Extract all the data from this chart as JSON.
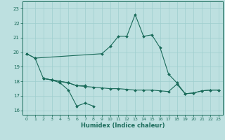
{
  "xlabel": "Humidex (Indice chaleur)",
  "xlim": [
    -0.5,
    23.5
  ],
  "ylim": [
    15.7,
    23.5
  ],
  "yticks": [
    16,
    17,
    18,
    19,
    20,
    21,
    22,
    23
  ],
  "xticks": [
    0,
    1,
    2,
    3,
    4,
    5,
    6,
    7,
    8,
    9,
    10,
    11,
    12,
    13,
    14,
    15,
    16,
    17,
    18,
    19,
    20,
    21,
    22,
    23
  ],
  "bg_color": "#bde0e0",
  "grid_color": "#9ecece",
  "line_color": "#1a6b5a",
  "series": [
    {
      "x": [
        0,
        1,
        2,
        3,
        4,
        5,
        6,
        7,
        8
      ],
      "y": [
        19.9,
        19.6,
        18.2,
        18.1,
        17.9,
        17.4,
        16.3,
        16.5,
        16.3
      ]
    },
    {
      "x": [
        2,
        3,
        4,
        5,
        6,
        7
      ],
      "y": [
        18.2,
        18.1,
        18.0,
        17.9,
        17.7,
        17.7
      ]
    },
    {
      "x": [
        2,
        3,
        4,
        5,
        6,
        7,
        8,
        9,
        10,
        11,
        12,
        13,
        14,
        15,
        16,
        17,
        18,
        19,
        20,
        21,
        22,
        23
      ],
      "y": [
        18.2,
        18.1,
        18.0,
        17.9,
        17.7,
        17.65,
        17.6,
        17.55,
        17.5,
        17.5,
        17.45,
        17.4,
        17.4,
        17.4,
        17.35,
        17.3,
        17.8,
        17.15,
        17.2,
        17.35,
        17.4,
        17.4
      ]
    },
    {
      "x": [
        0,
        1,
        9,
        10,
        11,
        12,
        13,
        14,
        15,
        16,
        17,
        18,
        19,
        20,
        21,
        22,
        23
      ],
      "y": [
        19.9,
        19.6,
        19.9,
        20.4,
        21.1,
        21.1,
        22.6,
        21.1,
        21.2,
        20.3,
        18.5,
        17.9,
        17.15,
        17.2,
        17.35,
        17.4,
        17.4
      ]
    }
  ]
}
